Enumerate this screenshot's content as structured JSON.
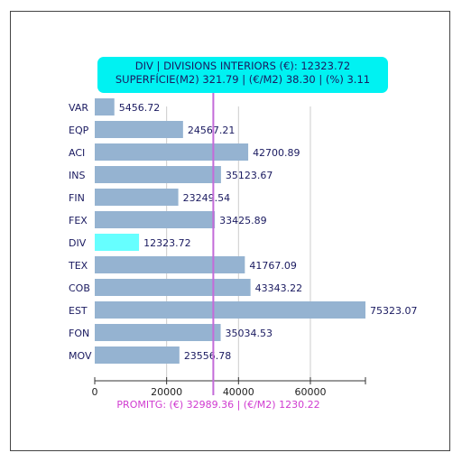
{
  "chart_data": {
    "type": "bar",
    "orientation": "horizontal",
    "categories": [
      "VAR",
      "EQP",
      "ACI",
      "INS",
      "FIN",
      "FEX",
      "DIV",
      "TEX",
      "COB",
      "EST",
      "FON",
      "MOV"
    ],
    "values": [
      5456.72,
      24567.21,
      42700.89,
      35123.67,
      23249.54,
      33425.89,
      12323.72,
      41767.09,
      43343.22,
      75323.07,
      35034.53,
      23556.78
    ],
    "value_labels": [
      "5456.72",
      "24567.21",
      "42700.89",
      "35123.67",
      "23249.54",
      "33425.89",
      "12323.72",
      "41767.09",
      "43343.22",
      "75323.07",
      "35034.53",
      "23556.78"
    ],
    "highlighted_category": "DIV",
    "xlim": [
      0,
      75323.07
    ],
    "xticks": [
      0,
      20000,
      40000,
      60000
    ],
    "xtick_labels": [
      "0",
      "20000",
      "40000",
      "60000"
    ],
    "grid": "vertical",
    "average_line": {
      "value": 32989.36,
      "label": "PROMITG: (€) 32989.36 | (€/M2) 1230.22",
      "color": "#c46bd9"
    },
    "colors": {
      "bar": "#95b3d1",
      "highlight": "#66ffff",
      "grid": "#cccccc",
      "text": "#1a1a60",
      "average_text": "#d03bd0"
    },
    "tooltip": {
      "line1": "DIV | DIVISIONS INTERIORS (€): 12323.72",
      "line2": "SUPERFÍCIE(M2) 321.79 | (€/M2) 38.30 | (%) 3.11",
      "color": "#00f2f2"
    },
    "title": "",
    "xlabel": "",
    "ylabel": ""
  }
}
